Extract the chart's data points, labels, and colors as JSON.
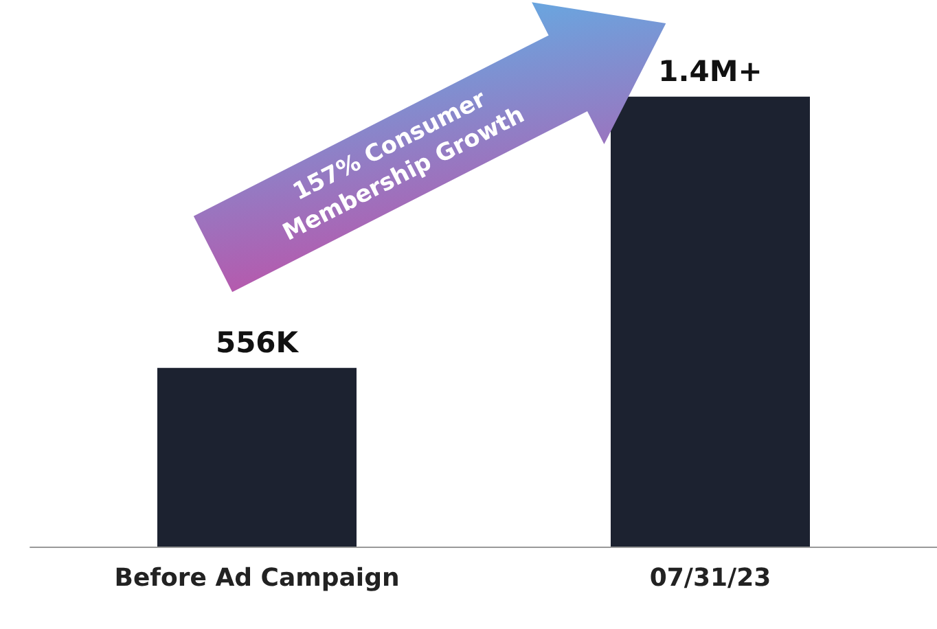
{
  "chart_data": {
    "type": "bar",
    "categories": [
      "Before Ad Campaign",
      "07/31/23"
    ],
    "values": [
      556000,
      1400000
    ],
    "value_labels": [
      "556K",
      "1.4M+"
    ],
    "color": "#1c2230",
    "annotations": [
      "157% Consumer Membership Growth"
    ],
    "grid": false
  }
}
